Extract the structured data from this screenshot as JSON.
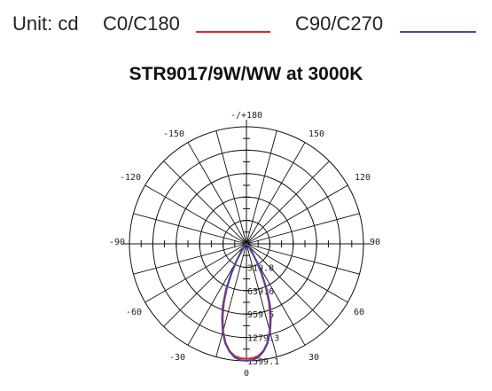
{
  "legend": {
    "unit_label": "Unit: cd",
    "series_a_label": "C0/C180",
    "series_a_color": "#e0242c",
    "series_b_label": "C90/C270",
    "series_b_color": "#4a46a8"
  },
  "chart_data": {
    "type": "polar",
    "title": "STR9017/9W/WW at 3000K",
    "unit": "cd",
    "radial_max": 1599.1,
    "radial_ticks": [
      "319.8",
      "639.6",
      "959.5",
      "1279.3",
      "1599.1"
    ],
    "angle_labels": [
      {
        "angle": 180,
        "text": "-/+180"
      },
      {
        "angle": -150,
        "text": "-150"
      },
      {
        "angle": 150,
        "text": "150"
      },
      {
        "angle": -120,
        "text": "-120"
      },
      {
        "angle": 120,
        "text": "120"
      },
      {
        "angle": -90,
        "text": "-90"
      },
      {
        "angle": 90,
        "text": "90"
      },
      {
        "angle": -60,
        "text": "-60"
      },
      {
        "angle": 60,
        "text": "60"
      },
      {
        "angle": -30,
        "text": "-30"
      },
      {
        "angle": 30,
        "text": "30"
      },
      {
        "angle": 0,
        "text": "0"
      }
    ],
    "series": [
      {
        "name": "C0/C180",
        "color": "#e0242c",
        "angles": [
          0,
          3,
          6,
          9,
          12,
          15,
          18,
          21,
          24,
          27,
          30,
          36,
          45,
          60,
          90
        ],
        "values": [
          1570,
          1565,
          1540,
          1480,
          1380,
          1230,
          1050,
          860,
          650,
          440,
          270,
          100,
          20,
          5,
          0
        ]
      },
      {
        "name": "C90/C270",
        "color": "#4a46a8",
        "angles": [
          0,
          3,
          6,
          9,
          12,
          15,
          18,
          21,
          24,
          27,
          30,
          36,
          45,
          60,
          90
        ],
        "values": [
          1599,
          1590,
          1560,
          1490,
          1390,
          1250,
          1080,
          900,
          690,
          470,
          290,
          110,
          22,
          5,
          0
        ]
      }
    ]
  }
}
